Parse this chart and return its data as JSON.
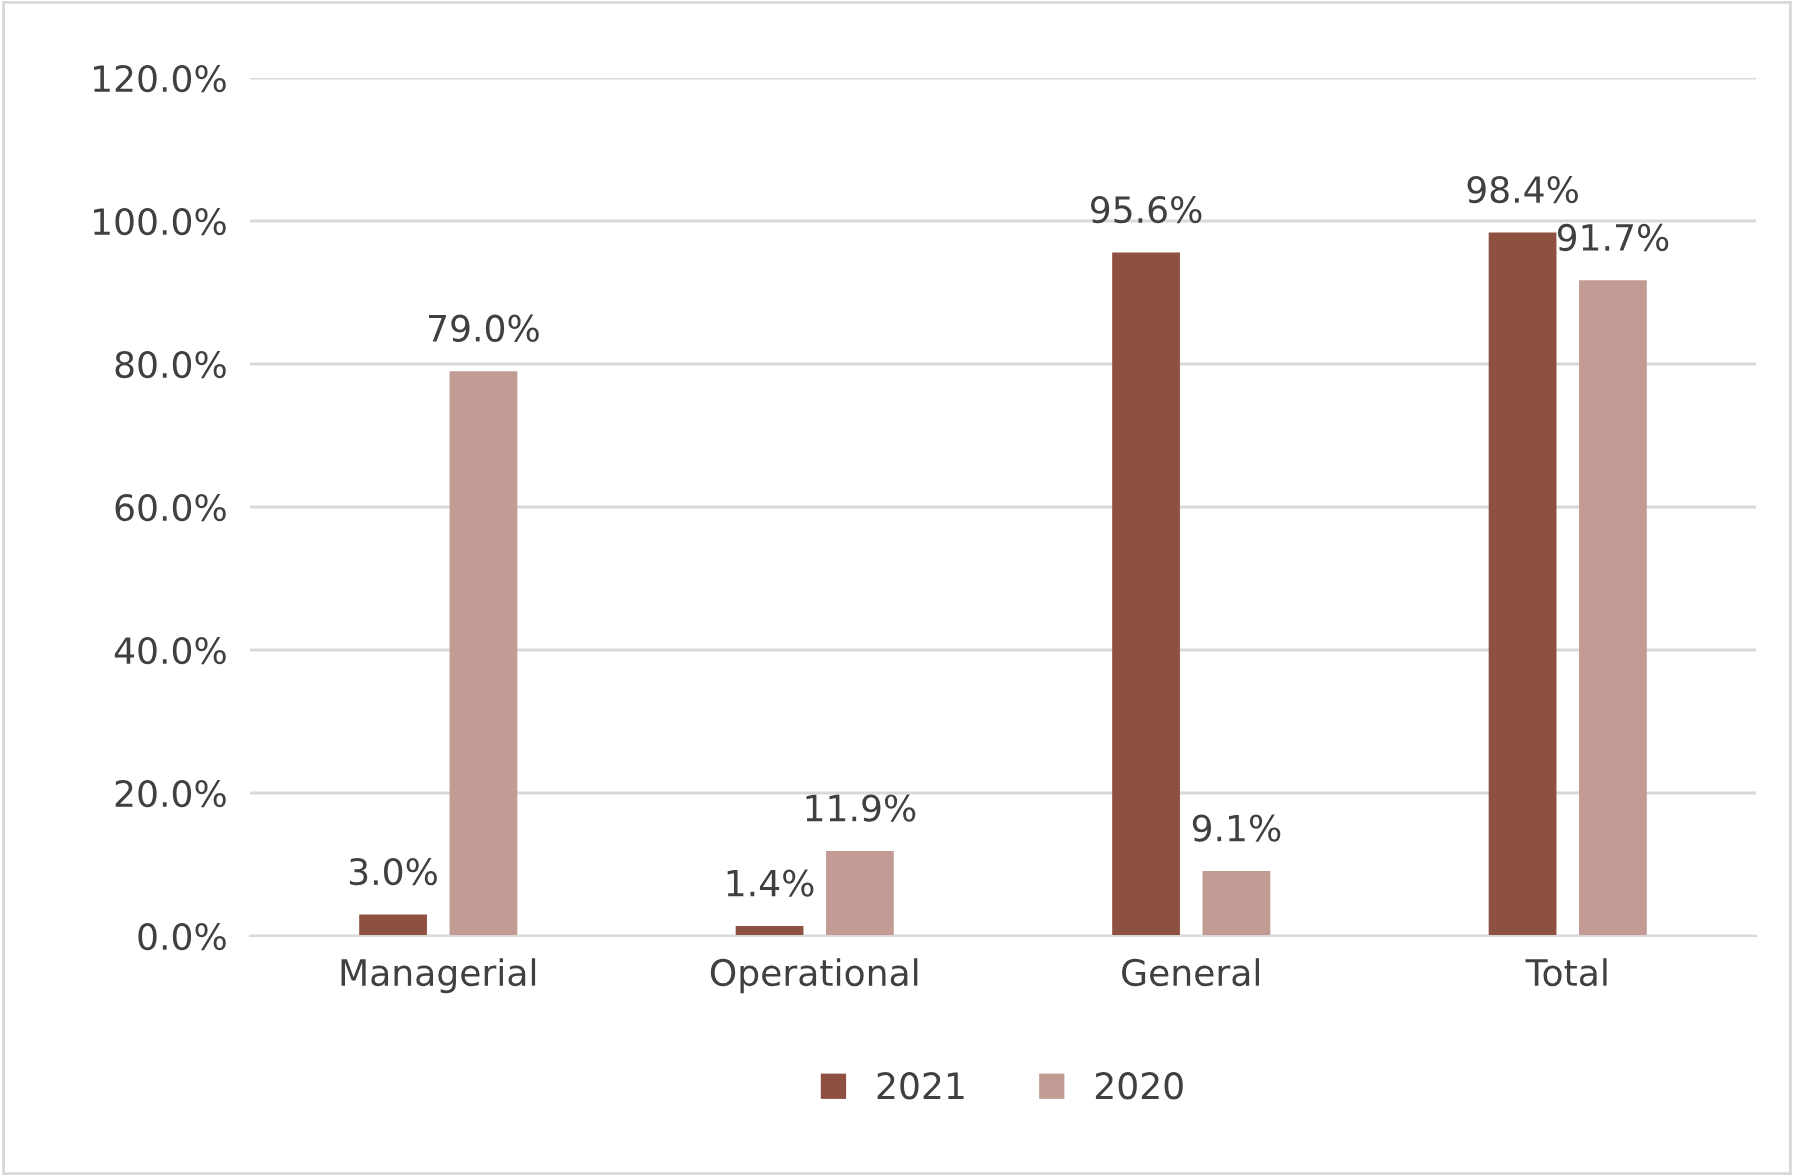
{
  "chart_data": {
    "type": "bar",
    "categories": [
      "Managerial",
      "Operational",
      "General",
      "Total"
    ],
    "series": [
      {
        "name": "2021",
        "color": "#8e5141",
        "values": [
          3.0,
          1.4,
          95.6,
          98.4
        ],
        "value_labels": [
          "3.0%",
          "1.4%",
          "95.6%",
          "98.4%"
        ]
      },
      {
        "name": "2020",
        "color": "#c29c94",
        "values": [
          79.0,
          11.9,
          9.1,
          91.7
        ],
        "value_labels": [
          "79.0%",
          "11.9%",
          "9.1%",
          "91.7%"
        ]
      }
    ],
    "ylim": [
      0,
      120
    ],
    "yticks": [
      {
        "value": 0,
        "label": "0.0%"
      },
      {
        "value": 20,
        "label": "20.0%"
      },
      {
        "value": 40,
        "label": "40.0%"
      },
      {
        "value": 60,
        "label": "60.0%"
      },
      {
        "value": 80,
        "label": "80.0%"
      },
      {
        "value": 100,
        "label": "100.0%"
      },
      {
        "value": 120,
        "label": "120.0%"
      }
    ],
    "grid": "y",
    "legend": "bottom"
  }
}
